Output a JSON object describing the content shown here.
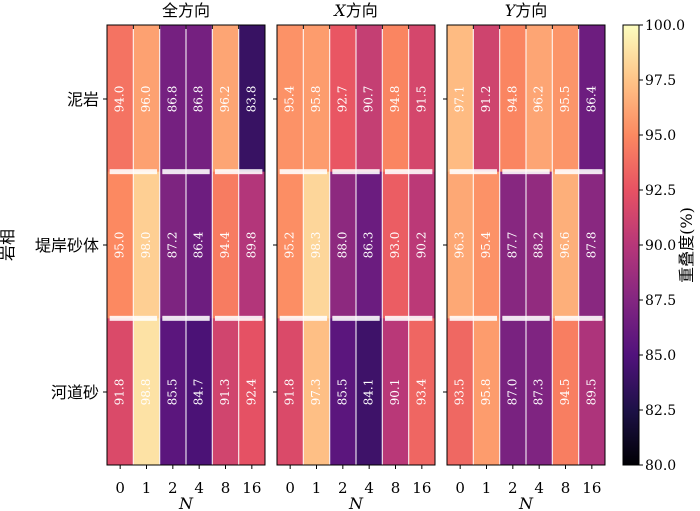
{
  "chart_data": {
    "type": "heatmap",
    "y_axis_label": "岩相",
    "x_axis_label": "N",
    "row_labels": [
      "泥岩",
      "堤岸砂体",
      "河道砂"
    ],
    "column_labels": [
      "0",
      "1",
      "2",
      "4",
      "8",
      "16"
    ],
    "panels": [
      {
        "title": "全方向",
        "values": [
          [
            94.0,
            96.0,
            86.8,
            86.8,
            96.2,
            83.8
          ],
          [
            95.0,
            98.0,
            87.2,
            86.4,
            94.4,
            89.8
          ],
          [
            91.8,
            98.8,
            85.5,
            84.7,
            91.3,
            92.4
          ]
        ]
      },
      {
        "title": "X方向",
        "values": [
          [
            95.4,
            95.8,
            92.7,
            90.7,
            94.8,
            91.5
          ],
          [
            95.2,
            98.3,
            88.0,
            86.3,
            93.0,
            90.2
          ],
          [
            91.8,
            97.3,
            85.5,
            84.1,
            90.1,
            93.4
          ]
        ]
      },
      {
        "title": "Y方向",
        "values": [
          [
            97.1,
            91.2,
            94.8,
            96.2,
            95.5,
            86.4
          ],
          [
            96.3,
            95.4,
            87.7,
            88.2,
            96.6,
            87.8
          ],
          [
            93.5,
            95.8,
            87.0,
            87.3,
            94.5,
            89.5
          ]
        ]
      }
    ],
    "colorbar": {
      "label": "重叠度(%)",
      "min": 80.0,
      "max": 100.0,
      "ticks": [
        "80.0",
        "82.5",
        "85.0",
        "87.5",
        "90.0",
        "92.5",
        "95.0",
        "97.5",
        "100.0"
      ],
      "colormap": "magma"
    }
  }
}
